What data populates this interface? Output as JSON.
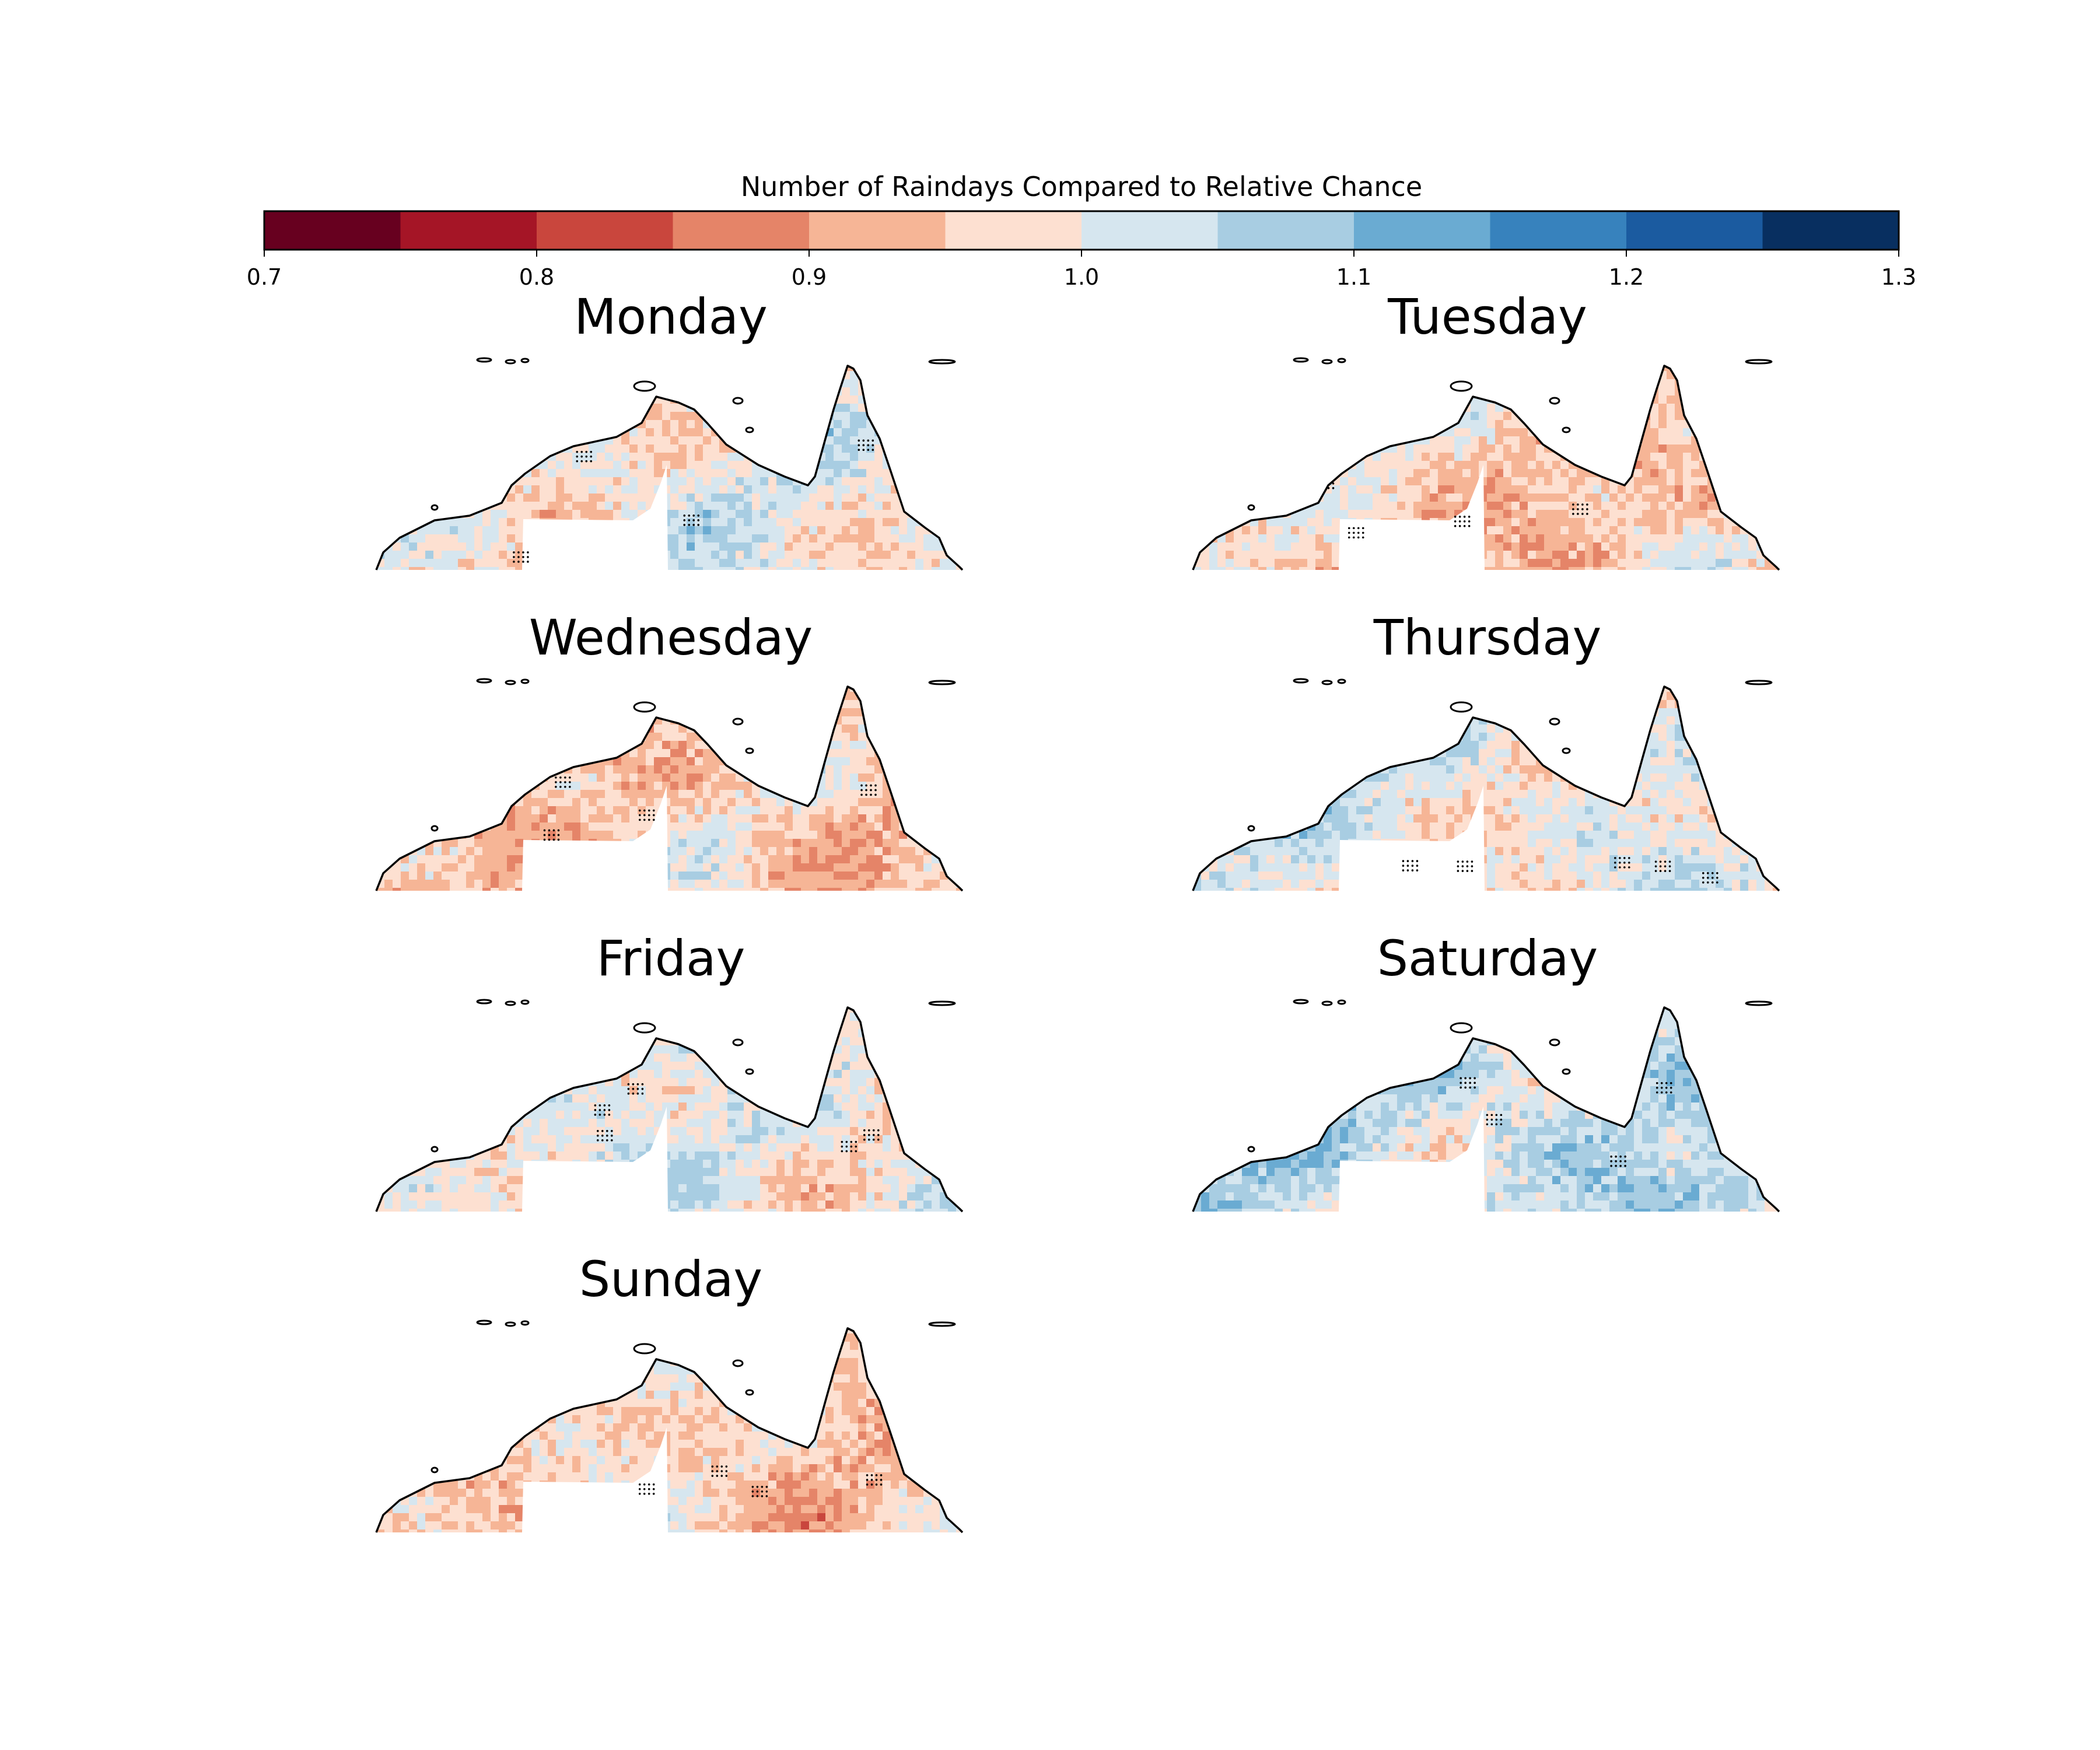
{
  "colorbar": {
    "title": "Number of Raindays Compared to Relative Chance",
    "min": 0.7,
    "max": 1.3,
    "bin_width": 0.05,
    "colors": [
      "#67001f",
      "#a51526",
      "#c9463d",
      "#e58468",
      "#f6b596",
      "#fde0d1",
      "#d6e6ef",
      "#a8cde2",
      "#6aabd2",
      "#3782bd",
      "#1b5ba0",
      "#082f60"
    ],
    "tick_values": [
      0.7,
      0.8,
      0.9,
      1.0,
      1.1,
      1.2,
      1.3
    ],
    "tick_labels": [
      "0.7",
      "0.8",
      "0.9",
      "1.0",
      "1.1",
      "1.2",
      "1.3"
    ]
  },
  "panels": [
    {
      "title": "Monday",
      "dominant": "mixed"
    },
    {
      "title": "Tuesday",
      "dominant": "red"
    },
    {
      "title": "Wednesday",
      "dominant": "red"
    },
    {
      "title": "Thursday",
      "dominant": "neutral"
    },
    {
      "title": "Friday",
      "dominant": "mixed"
    },
    {
      "title": "Saturday",
      "dominant": "blue"
    },
    {
      "title": "Sunday",
      "dominant": "red"
    }
  ],
  "map": {
    "region": "Northern Australia",
    "coastline_color": "#000000",
    "significance_marker": "stippling"
  }
}
